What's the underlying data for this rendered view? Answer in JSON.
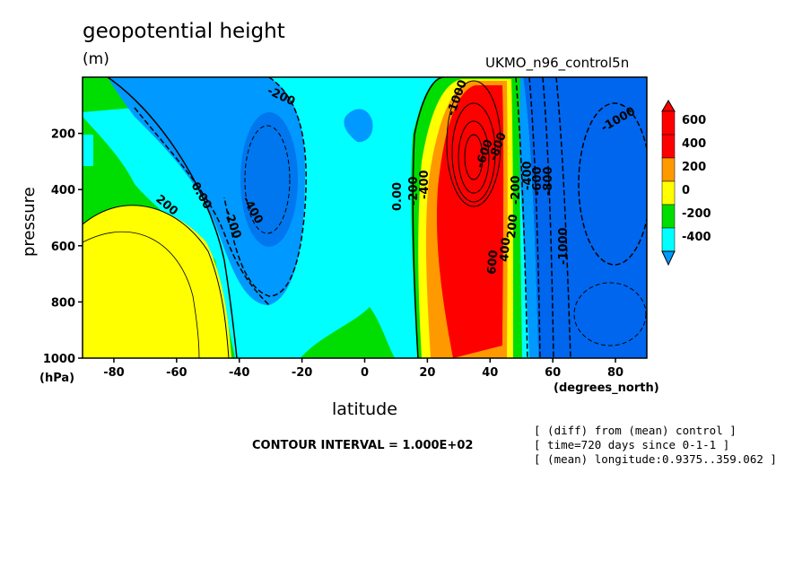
{
  "title": "geopotential height",
  "units": "(m)",
  "dataset": "UKMO_n96_control5n",
  "chart_data": {
    "type": "heatmap",
    "subtype": "filled contour",
    "xlabel": "latitude",
    "x_units": "(degrees_north)",
    "ylabel": "pressure",
    "y_units": "(hPa)",
    "xlim": [
      -90,
      90
    ],
    "ylim": [
      1000,
      0
    ],
    "x_ticks": [
      -80,
      -60,
      -40,
      -20,
      0,
      20,
      40,
      60,
      80
    ],
    "y_ticks": [
      200,
      400,
      600,
      800,
      1000
    ],
    "contour_interval": "CONTOUR INTERVAL = 1.000E+02",
    "colorbar_levels": [
      "600",
      "400",
      "200",
      "0",
      "-200",
      "-400"
    ],
    "colors": {
      "above_400": "#ff0000",
      "200_to_400": "#ff9900",
      "0_to_200": "#ffff00",
      "-200_to_0": "#00dd00",
      "-400_to_-200": "#00ffff",
      "below_-400": "#0099ff",
      "deep_low": "#0055ee"
    },
    "contour_labels": [
      "-200",
      "0.00",
      "-200",
      "-400",
      "200",
      "0.00",
      "-200",
      "-400",
      "-600",
      "-800",
      "-1000",
      "600",
      "400",
      "200",
      "-1000",
      "-800",
      "-600",
      "-400",
      "-200",
      "-1000"
    ],
    "regions": [
      {
        "name": "polar south lobe",
        "lat": -75,
        "p": 700,
        "value": 200
      },
      {
        "name": "midlatitude south low",
        "lat": -32,
        "p": 350,
        "value": -400
      },
      {
        "name": "subtropical north high",
        "lat": 35,
        "p": 250,
        "value": 600
      },
      {
        "name": "north polar low",
        "lat": 75,
        "p": 450,
        "value": -1000
      }
    ]
  },
  "annotations": {
    "line1": "[ (diff) from (mean) control ]",
    "line2": "[ time=720 days since 0-1-1 ]",
    "line3": "[ (mean) longitude:0.9375..359.062 ]"
  }
}
